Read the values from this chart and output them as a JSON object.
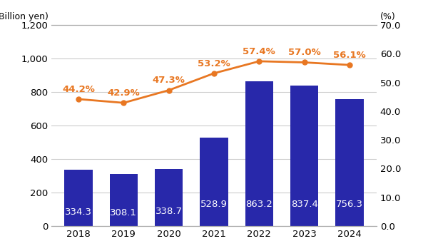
{
  "years": [
    2018,
    2019,
    2020,
    2021,
    2022,
    2023,
    2024
  ],
  "gross_profit": [
    334.3,
    308.1,
    338.7,
    528.9,
    863.2,
    837.4,
    756.3
  ],
  "gross_margin": [
    44.2,
    42.9,
    47.3,
    53.2,
    57.4,
    57.0,
    56.1
  ],
  "bar_color": "#2828aa",
  "line_color": "#e87722",
  "left_ylabel": "(Billion yen)",
  "right_ylabel": "(%)",
  "ylim_left": [
    0,
    1200
  ],
  "ylim_right": [
    0.0,
    70.0
  ],
  "yticks_left": [
    0,
    200,
    400,
    600,
    800,
    1000,
    1200
  ],
  "yticks_right": [
    0.0,
    10.0,
    20.0,
    30.0,
    40.0,
    50.0,
    60.0,
    70.0
  ],
  "bar_label_color": "#ffffff",
  "bar_label_fontsize": 9.5,
  "line_label_fontsize": 9.5,
  "line_label_color": "#e87722",
  "axis_label_fontsize": 9,
  "tick_fontsize": 9.5,
  "bar_width": 0.62,
  "background_color": "#ffffff",
  "grid_color": "#cccccc",
  "xlim": [
    2017.4,
    2024.6
  ]
}
